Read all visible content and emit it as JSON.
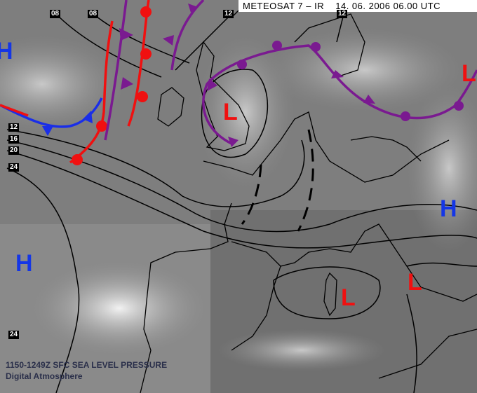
{
  "header": {
    "satellite": "METEOSAT 7 – IR",
    "datetime": "14. 06. 2006 06.00 UTC"
  },
  "isobar_labels": [
    "08",
    "08",
    "12",
    "12",
    "12",
    "16",
    "20",
    "24",
    "24"
  ],
  "pressure_centers": [
    {
      "type": "H",
      "color": "#1436e6"
    },
    {
      "type": "H",
      "color": "#1436e6"
    },
    {
      "type": "H",
      "color": "#1436e6"
    },
    {
      "type": "L",
      "color": "#f01010"
    },
    {
      "type": "L",
      "color": "#f01010"
    },
    {
      "type": "L",
      "color": "#f01010"
    },
    {
      "type": "L",
      "color": "#f01010"
    }
  ],
  "fronts": [
    {
      "kind": "cold",
      "color": "#1a2ee8"
    },
    {
      "kind": "warm",
      "color": "#f01010"
    },
    {
      "kind": "occluded",
      "color": "#7a1a90"
    },
    {
      "kind": "trough",
      "color": "#000000"
    }
  ],
  "footer": {
    "product": "1150-1249Z SFC SEA LEVEL PRESSURE",
    "source": "Digital Atmosphere"
  }
}
